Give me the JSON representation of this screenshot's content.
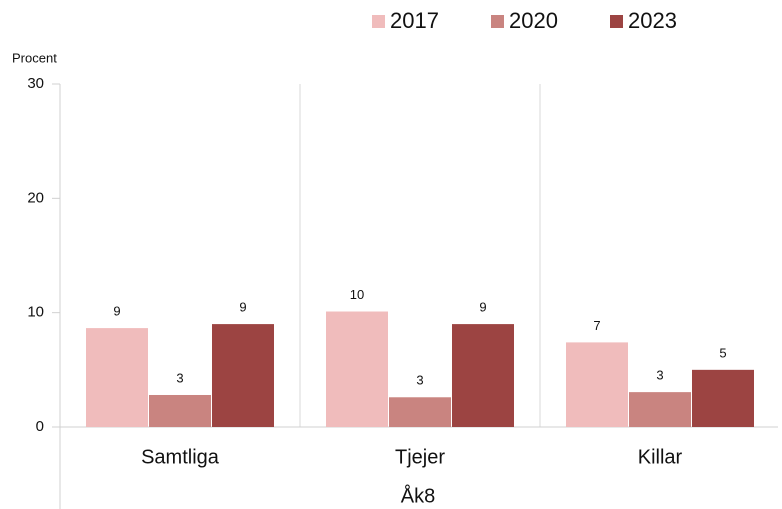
{
  "chart_data": {
    "type": "bar",
    "y_label": "Procent",
    "x_label": "Åk8",
    "categories": [
      "Samtliga",
      "Tjejer",
      "Killar"
    ],
    "series": [
      {
        "name": "2017",
        "color": "#f0bcbc",
        "values": [
          8.65,
          10.1,
          7.4
        ],
        "value_labels": [
          "9",
          "10",
          "7"
        ]
      },
      {
        "name": "2020",
        "color": "#c98480",
        "values": [
          2.8,
          2.6,
          3.05
        ],
        "value_labels": [
          "3",
          "3",
          "3"
        ]
      },
      {
        "name": "2023",
        "color": "#9c4442",
        "values": [
          9.0,
          9.0,
          5.0
        ],
        "value_labels": [
          "9",
          "9",
          "5"
        ]
      }
    ],
    "ylim": [
      0,
      30
    ],
    "yticks": [
      0,
      10,
      20,
      30
    ],
    "legend": "top"
  }
}
